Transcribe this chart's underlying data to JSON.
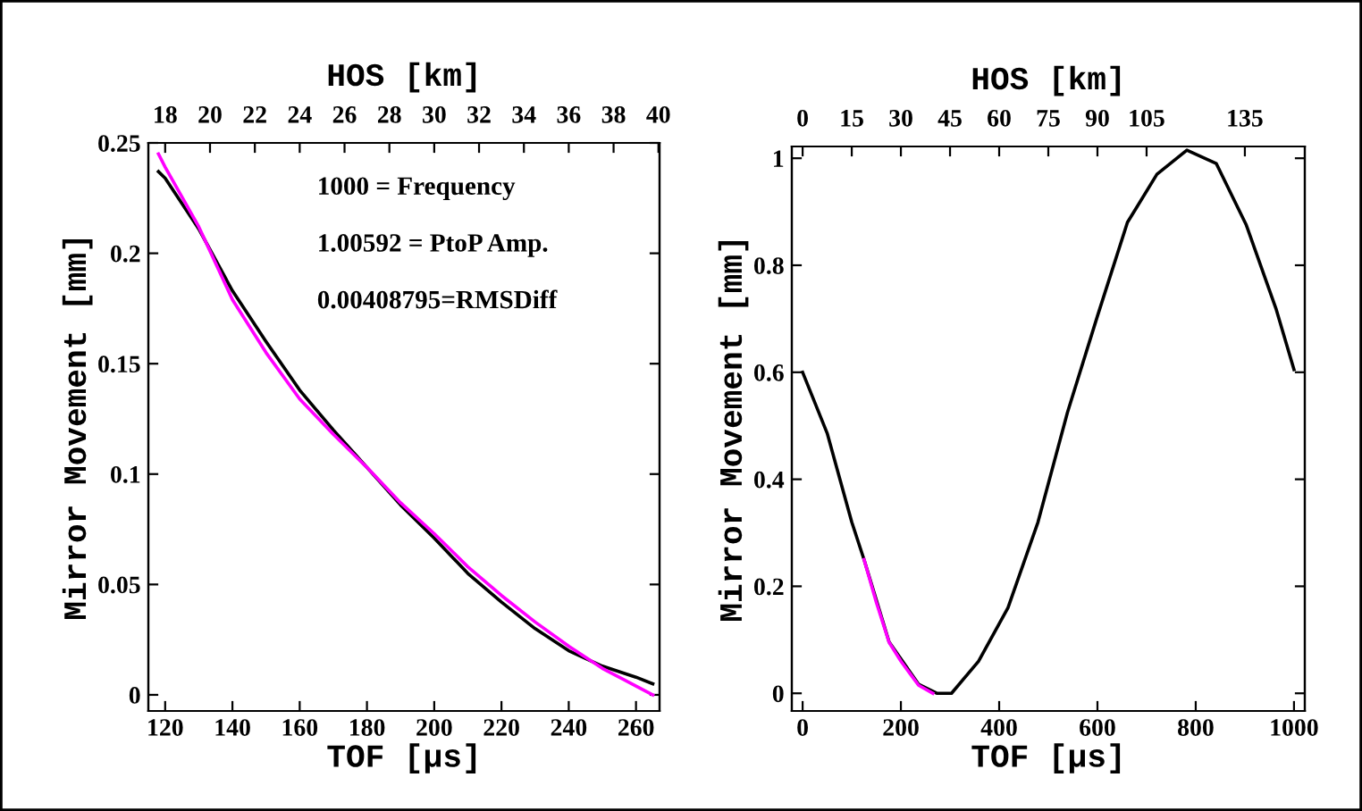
{
  "chart_data": [
    {
      "type": "line",
      "xlabel": "TOF [µs]",
      "ylabel": "Mirror Movement [mm]",
      "x2label": "HOS [km]",
      "xlim": [
        115,
        267
      ],
      "xticks": [
        120,
        140,
        160,
        180,
        200,
        220,
        240,
        260
      ],
      "x2lim": [
        17.25,
        40.05
      ],
      "x2ticks": [
        18,
        20,
        22,
        24,
        26,
        28,
        30,
        32,
        34,
        36,
        38,
        40
      ],
      "ylim": [
        -0.0073,
        0.25
      ],
      "yticks": [
        0,
        0.05,
        0.1,
        0.15,
        0.2,
        0.25
      ],
      "annotations": [
        "1000 = Frequency",
        "1.00592 = PtoP Amp.",
        "0.00408795=RMSDiff"
      ],
      "series": [
        {
          "color": "#000000",
          "x": [
            118,
            120,
            130,
            140,
            150,
            160,
            170,
            180,
            190,
            200,
            210,
            220,
            230,
            240,
            250,
            260,
            265
          ],
          "values": [
            0.237,
            0.234,
            0.211,
            0.183,
            0.16,
            0.138,
            0.12,
            0.103,
            0.086,
            0.071,
            0.055,
            0.042,
            0.03,
            0.02,
            0.013,
            0.008,
            0.005
          ]
        },
        {
          "color": "#ff00ff",
          "x": [
            118,
            120,
            130,
            140,
            150,
            160,
            170,
            180,
            190,
            200,
            210,
            220,
            230,
            240,
            250,
            260,
            265
          ],
          "values": [
            0.245,
            0.239,
            0.212,
            0.179,
            0.155,
            0.134,
            0.118,
            0.103,
            0.087,
            0.073,
            0.058,
            0.045,
            0.033,
            0.022,
            0.012,
            0.004,
            0.0
          ]
        }
      ]
    },
    {
      "type": "line",
      "xlabel": "TOF [µs]",
      "ylabel": "Mirror Movement [mm]",
      "x2label": "HOS [km]",
      "xlim": [
        -22,
        1022
      ],
      "xticks": [
        0,
        200,
        400,
        600,
        800,
        1000
      ],
      "x2lim": [
        -3.3,
        153.3
      ],
      "x2ticks": [
        0,
        15,
        30,
        45,
        60,
        75,
        90,
        105,
        135
      ],
      "ylim": [
        -0.033,
        1.022
      ],
      "yticks": [
        0,
        0.2,
        0.4,
        0.6,
        0.8,
        1
      ],
      "series": [
        {
          "color": "#000000",
          "x": [
            0,
            50,
            100,
            125,
            176,
            236,
            273,
            303,
            358,
            418,
            479,
            539,
            600,
            661,
            721,
            782,
            842,
            903,
            964,
            1000
          ],
          "values": [
            0.6,
            0.486,
            0.32,
            0.25,
            0.096,
            0.017,
            0.0,
            0.0,
            0.06,
            0.16,
            0.32,
            0.525,
            0.705,
            0.88,
            0.97,
            1.015,
            0.99,
            0.875,
            0.717,
            0.605
          ]
        },
        {
          "color": "#ff00ff",
          "x": [
            125,
            150,
            176,
            200,
            236,
            265
          ],
          "values": [
            0.25,
            0.17,
            0.095,
            0.06,
            0.015,
            0.0
          ]
        }
      ]
    }
  ]
}
